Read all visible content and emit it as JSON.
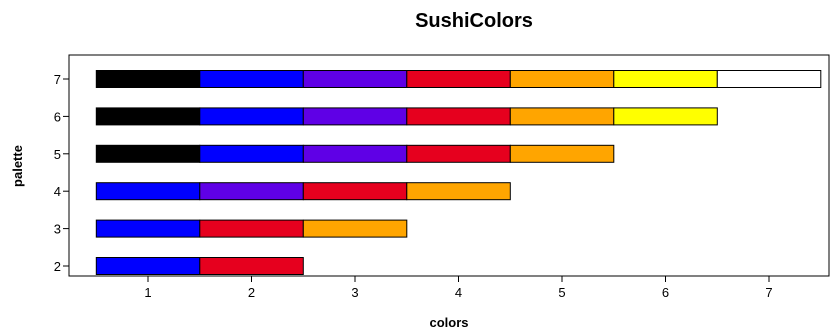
{
  "chart_data": {
    "type": "bar",
    "title": "SushiColors",
    "xlabel": "colors",
    "ylabel": "palette",
    "xlim": [
      0.5,
      7.5
    ],
    "ylim": [
      2,
      7
    ],
    "x_ticks": [
      1,
      2,
      3,
      4,
      5,
      6,
      7
    ],
    "y_ticks": [
      2,
      3,
      4,
      5,
      6,
      7
    ],
    "grid": false,
    "legend": "none",
    "palettes": [
      {
        "palette": 7,
        "colors": [
          "#000000",
          "#0000FF",
          "#5F00E6",
          "#E6001E",
          "#FFA500",
          "#FFFF00",
          "#FFFFFF"
        ]
      },
      {
        "palette": 6,
        "colors": [
          "#000000",
          "#0000FF",
          "#5F00E6",
          "#E6001E",
          "#FFA500",
          "#FFFF00"
        ]
      },
      {
        "palette": 5,
        "colors": [
          "#000000",
          "#0000FF",
          "#5F00E6",
          "#E6001E",
          "#FFA500"
        ]
      },
      {
        "palette": 4,
        "colors": [
          "#0000FF",
          "#5F00E6",
          "#E6001E",
          "#FFA500"
        ]
      },
      {
        "palette": 3,
        "colors": [
          "#0000FF",
          "#E6001E",
          "#FFA500"
        ]
      },
      {
        "palette": 2,
        "colors": [
          "#0000FF",
          "#E6001E"
        ]
      }
    ]
  }
}
